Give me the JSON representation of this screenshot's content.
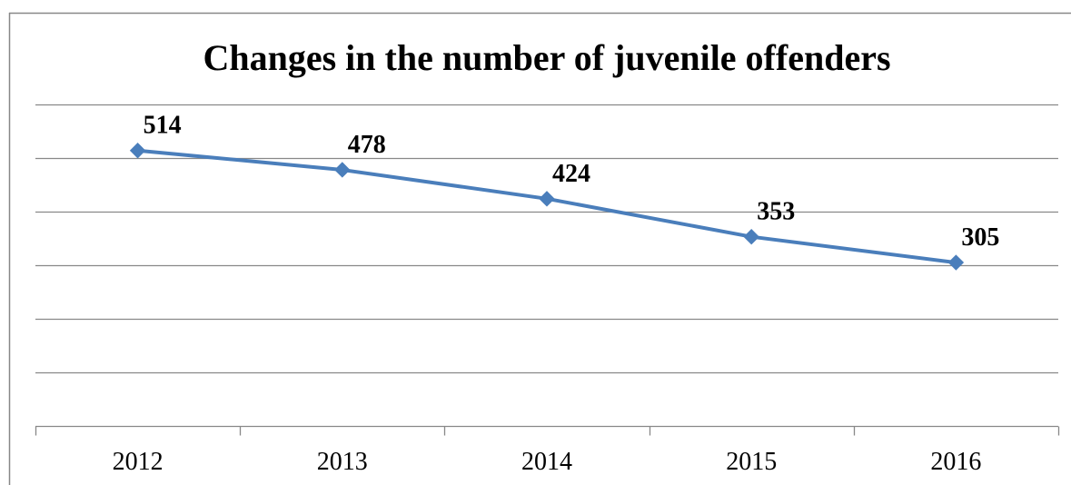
{
  "chart_data": {
    "type": "line",
    "title": "Changes in the number of juvenile offenders",
    "categories": [
      "2012",
      "2013",
      "2014",
      "2015",
      "2016"
    ],
    "series": [
      {
        "values": [
          514,
          478,
          424,
          353,
          305
        ],
        "color": "#4A7EBB",
        "marker": "diamond",
        "data_labels": [
          "514",
          "478",
          "424",
          "353",
          "305"
        ]
      }
    ],
    "xlabel": "",
    "ylabel": "",
    "ylim": [
      0,
      600
    ],
    "grid": true,
    "legend": "none",
    "y_tick_labels_visible": false
  },
  "colors": {
    "gridline": "#888888",
    "axis": "#888888",
    "frame": "#888888",
    "background": "#ffffff"
  }
}
